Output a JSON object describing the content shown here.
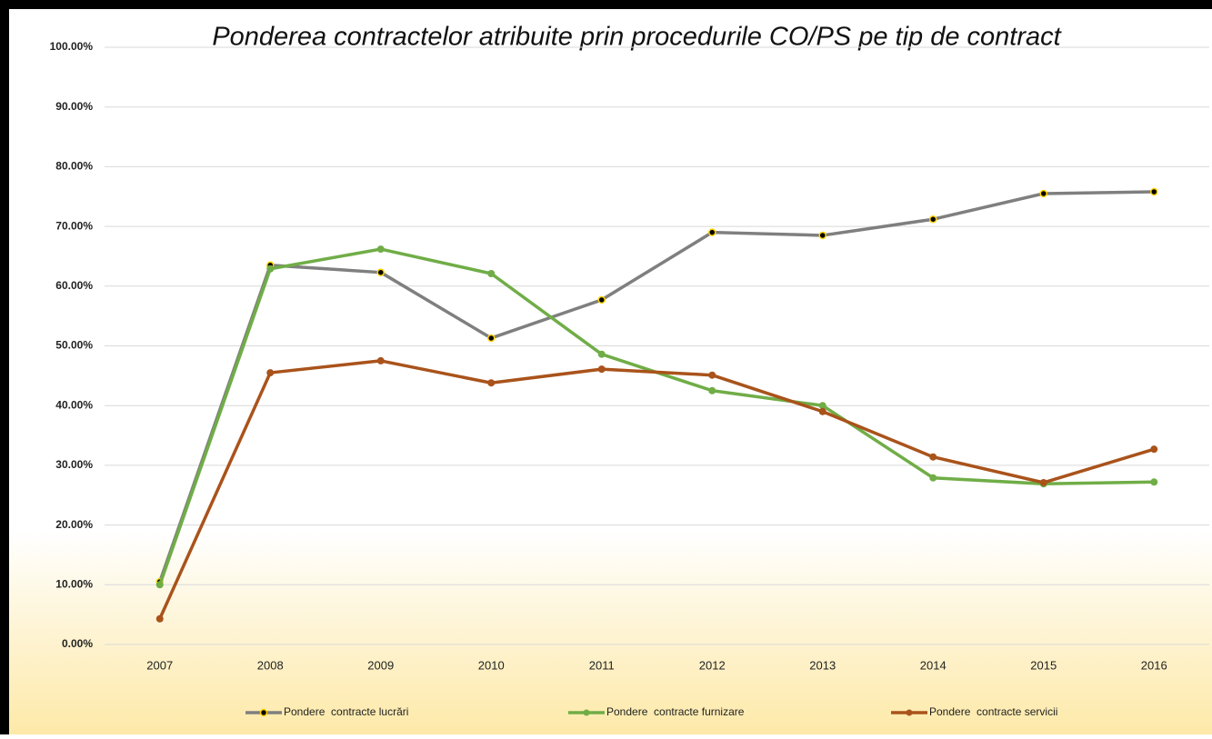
{
  "chart_data": {
    "type": "line",
    "title": "Ponderea contractelor atribuite prin procedurile CO/PS pe tip de contract",
    "categories": [
      "2007",
      "2008",
      "2009",
      "2010",
      "2011",
      "2012",
      "2013",
      "2014",
      "2015",
      "2016"
    ],
    "series": [
      {
        "name": "Pondere  contracte lucrări",
        "color": "#7f7f7f",
        "marker_color": "#000000",
        "values": [
          10.5,
          63.5,
          62.3,
          51.3,
          57.7,
          69.0,
          68.5,
          71.2,
          75.5,
          75.8
        ]
      },
      {
        "name": "Pondere  contracte furnizare",
        "color": "#70ad47",
        "marker_color": "#70ad47",
        "values": [
          10.0,
          62.9,
          66.2,
          62.1,
          48.6,
          42.5,
          40.0,
          27.9,
          26.9,
          27.2
        ]
      },
      {
        "name": "Pondere  contracte servicii",
        "color": "#a9531b",
        "marker_color": "#a9531b",
        "values": [
          4.3,
          45.5,
          47.5,
          43.8,
          46.1,
          45.1,
          39.0,
          31.4,
          27.1,
          32.7
        ]
      }
    ],
    "ylim": [
      0,
      100
    ],
    "yticks": [
      {
        "value": 0,
        "label": "0.00%"
      },
      {
        "value": 10,
        "label": "10.00%"
      },
      {
        "value": 20,
        "label": "20.00%"
      },
      {
        "value": 30,
        "label": "30.00%"
      },
      {
        "value": 40,
        "label": "40.00%"
      },
      {
        "value": 50,
        "label": "50.00%"
      },
      {
        "value": 60,
        "label": "60.00%"
      },
      {
        "value": 70,
        "label": "70.00%"
      },
      {
        "value": 80,
        "label": "80.00%"
      },
      {
        "value": 90,
        "label": "90.00%"
      },
      {
        "value": 100,
        "label": "100.00%"
      }
    ],
    "grid": true,
    "legend": "bottom"
  }
}
